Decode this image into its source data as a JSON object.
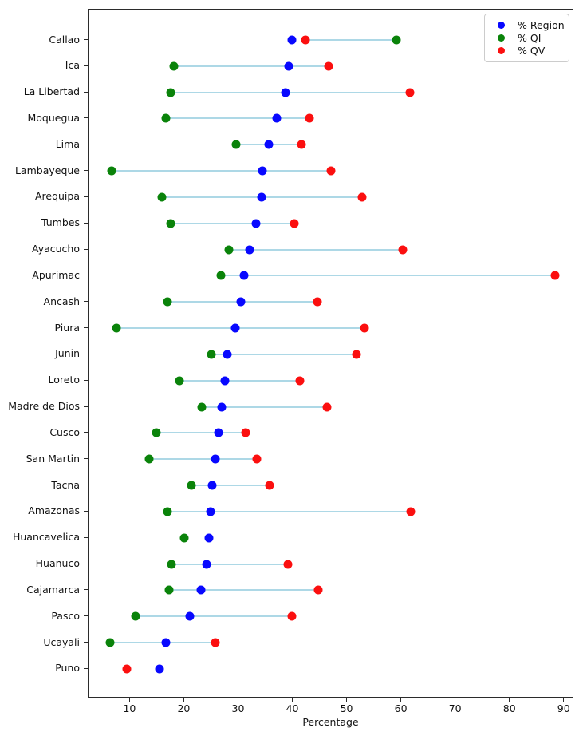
{
  "chart_data": {
    "type": "scatter",
    "title": "",
    "xlabel": "Percentage",
    "x_axis": {
      "min": 2.3,
      "max": 91.8,
      "ticks": [
        10,
        20,
        30,
        40,
        50,
        60,
        70,
        80,
        90
      ]
    },
    "grid": false,
    "legend_position": "upper right",
    "legend": [
      {
        "label": "% Region",
        "color": "#0808ff"
      },
      {
        "label": "% QI",
        "color": "#0a830a"
      },
      {
        "label": "% QV",
        "color": "#fb0f0f"
      }
    ],
    "connector_color": "#add8e6",
    "series_keys": {
      "region": "% Region",
      "qi": "% QI",
      "qv": "% QV"
    },
    "regions": [
      {
        "name": "Callao",
        "region": 39.8,
        "qi": 59.0,
        "qv": 42.3
      },
      {
        "name": "Ica",
        "region": 39.2,
        "qi": 18.0,
        "qv": 46.5
      },
      {
        "name": "La Libertad",
        "region": 38.6,
        "qi": 17.4,
        "qv": 61.5
      },
      {
        "name": "Moquegua",
        "region": 37.0,
        "qi": 16.5,
        "qv": 43.0
      },
      {
        "name": "Lima",
        "region": 35.5,
        "qi": 29.5,
        "qv": 41.5
      },
      {
        "name": "Lambayeque",
        "region": 34.4,
        "qi": 6.5,
        "qv": 47.0
      },
      {
        "name": "Arequipa",
        "region": 34.2,
        "qi": 15.8,
        "qv": 52.7
      },
      {
        "name": "Tumbes",
        "region": 33.2,
        "qi": 17.5,
        "qv": 40.2
      },
      {
        "name": "Ayacucho",
        "region": 32.0,
        "qi": 28.2,
        "qv": 60.2
      },
      {
        "name": "Apurimac",
        "region": 31.0,
        "qi": 26.7,
        "qv": 88.2
      },
      {
        "name": "Ancash",
        "region": 30.4,
        "qi": 16.8,
        "qv": 44.5
      },
      {
        "name": "Piura",
        "region": 29.4,
        "qi": 7.5,
        "qv": 53.2
      },
      {
        "name": "Junin",
        "region": 27.8,
        "qi": 25.0,
        "qv": 51.7
      },
      {
        "name": "Loreto",
        "region": 27.4,
        "qi": 19.0,
        "qv": 41.2
      },
      {
        "name": "Madre de Dios",
        "region": 26.9,
        "qi": 23.2,
        "qv": 46.2
      },
      {
        "name": "Cusco",
        "region": 26.3,
        "qi": 14.8,
        "qv": 31.3
      },
      {
        "name": "San Martin",
        "region": 25.7,
        "qi": 13.5,
        "qv": 33.3
      },
      {
        "name": "Tacna",
        "region": 25.1,
        "qi": 21.3,
        "qv": 35.6
      },
      {
        "name": "Amazonas",
        "region": 24.8,
        "qi": 16.8,
        "qv": 61.7
      },
      {
        "name": "Huancavelica",
        "region": 24.5,
        "qi": 20.0,
        "qv": null
      },
      {
        "name": "Huanuco",
        "region": 24.0,
        "qi": 17.6,
        "qv": 39.0
      },
      {
        "name": "Cajamarca",
        "region": 23.0,
        "qi": 17.2,
        "qv": 44.6
      },
      {
        "name": "Pasco",
        "region": 20.9,
        "qi": 11.0,
        "qv": 39.8
      },
      {
        "name": "Ucayali",
        "region": 16.6,
        "qi": 6.3,
        "qv": 25.6
      },
      {
        "name": "Puno",
        "region": 15.4,
        "qi": null,
        "qv": 9.3
      }
    ]
  }
}
